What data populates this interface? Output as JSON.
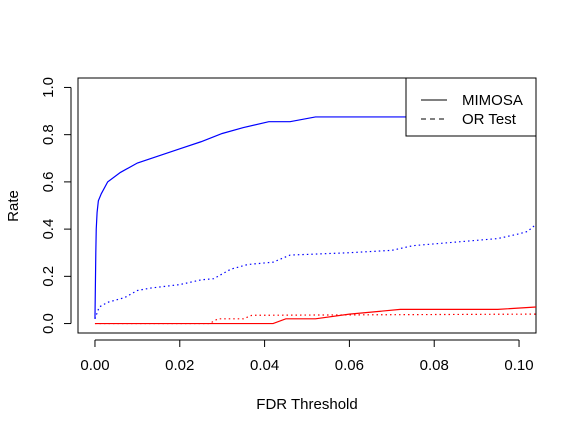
{
  "chart_data": {
    "type": "line",
    "title": "",
    "xlabel": "FDR Threshold",
    "ylabel": "Rate",
    "xlim": [
      -0.004,
      0.104
    ],
    "ylim": [
      -0.04,
      1.04
    ],
    "xticks": [
      0.0,
      0.02,
      0.04,
      0.06,
      0.08,
      0.1
    ],
    "xtick_labels": [
      "0.00",
      "0.02",
      "0.04",
      "0.06",
      "0.08",
      "0.10"
    ],
    "yticks": [
      0.0,
      0.2,
      0.4,
      0.6,
      0.8,
      1.0
    ],
    "ytick_labels": [
      "0.0",
      "0.2",
      "0.4",
      "0.6",
      "0.8",
      "1.0"
    ],
    "grid": false,
    "legend_position": "top-right",
    "legend": [
      {
        "label": "MIMOSA",
        "style": "solid"
      },
      {
        "label": "OR Test",
        "style": "dashed"
      }
    ],
    "series": [
      {
        "method": "MIMOSA",
        "color": "#0000FF",
        "style": "solid",
        "points": [
          [
            0.0,
            0.02
          ],
          [
            0.0002,
            0.3
          ],
          [
            0.0003,
            0.4
          ],
          [
            0.0005,
            0.47
          ],
          [
            0.0008,
            0.52
          ],
          [
            0.0015,
            0.55
          ],
          [
            0.003,
            0.6
          ],
          [
            0.006,
            0.64
          ],
          [
            0.01,
            0.68
          ],
          [
            0.015,
            0.71
          ],
          [
            0.02,
            0.74
          ],
          [
            0.025,
            0.77
          ],
          [
            0.03,
            0.805
          ],
          [
            0.035,
            0.83
          ],
          [
            0.041,
            0.855
          ],
          [
            0.046,
            0.855
          ],
          [
            0.052,
            0.875
          ],
          [
            0.075,
            0.875
          ]
        ]
      },
      {
        "method": "OR Test",
        "color": "#0000FF",
        "style": "dotted",
        "points": [
          [
            0.0,
            0.02
          ],
          [
            0.001,
            0.07
          ],
          [
            0.003,
            0.09
          ],
          [
            0.007,
            0.11
          ],
          [
            0.01,
            0.14
          ],
          [
            0.013,
            0.15
          ],
          [
            0.02,
            0.165
          ],
          [
            0.025,
            0.185
          ],
          [
            0.028,
            0.19
          ],
          [
            0.032,
            0.23
          ],
          [
            0.036,
            0.25
          ],
          [
            0.042,
            0.26
          ],
          [
            0.046,
            0.29
          ],
          [
            0.06,
            0.3
          ],
          [
            0.07,
            0.31
          ],
          [
            0.075,
            0.33
          ],
          [
            0.085,
            0.345
          ],
          [
            0.095,
            0.36
          ],
          [
            0.1,
            0.38
          ],
          [
            0.102,
            0.39
          ],
          [
            0.104,
            0.42
          ]
        ]
      },
      {
        "method": "MIMOSA",
        "color": "#FF0000",
        "style": "solid",
        "points": [
          [
            0.0,
            0.0
          ],
          [
            0.042,
            0.0
          ],
          [
            0.045,
            0.02
          ],
          [
            0.052,
            0.02
          ],
          [
            0.06,
            0.04
          ],
          [
            0.072,
            0.06
          ],
          [
            0.095,
            0.06
          ],
          [
            0.104,
            0.07
          ]
        ]
      },
      {
        "method": "OR Test",
        "color": "#FF0000",
        "style": "dotted",
        "points": [
          [
            0.0,
            0.0
          ],
          [
            0.027,
            0.0
          ],
          [
            0.029,
            0.02
          ],
          [
            0.035,
            0.02
          ],
          [
            0.037,
            0.035
          ],
          [
            0.104,
            0.04
          ]
        ]
      }
    ]
  }
}
